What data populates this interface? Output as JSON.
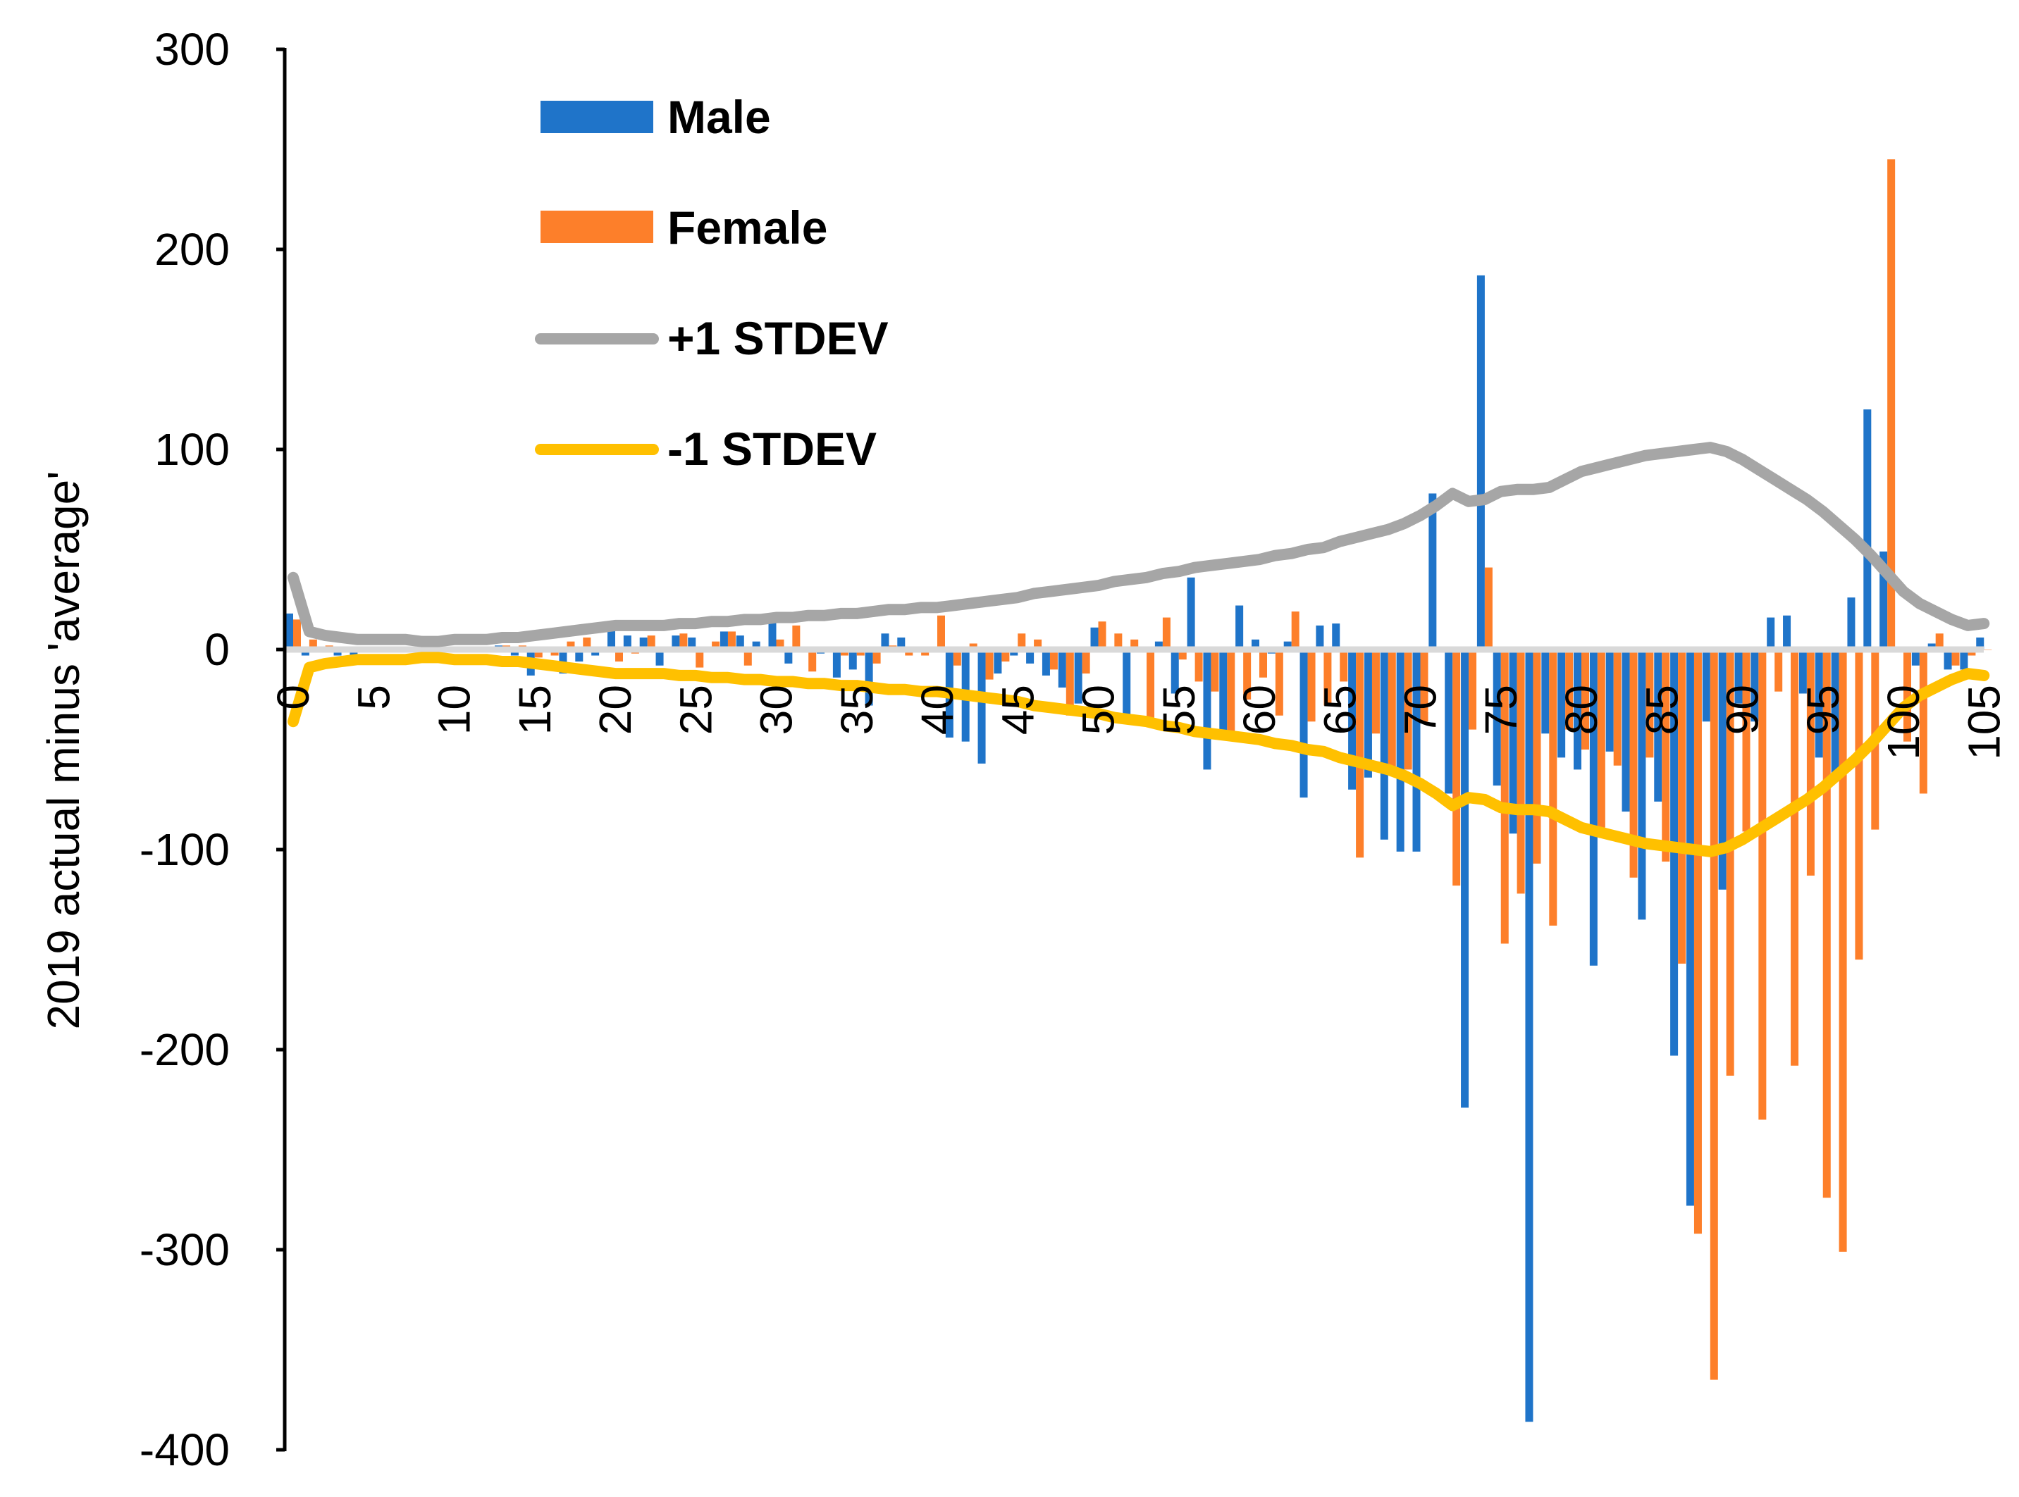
{
  "chart_data": {
    "type": "bar",
    "title": "",
    "xlabel": "",
    "ylabel": "2019 actual minus 'average'",
    "ylim": [
      -400,
      300
    ],
    "yticks": [
      "300",
      "200",
      "100",
      "0",
      "-100",
      "-200",
      "-300",
      "-400"
    ],
    "xticks": [
      "0",
      "5",
      "10",
      "15",
      "20",
      "25",
      "30",
      "35",
      "40",
      "45",
      "50",
      "55",
      "60",
      "65",
      "70",
      "75",
      "80",
      "85",
      "90",
      "95",
      "100",
      "105"
    ],
    "grid": false,
    "legend_position": "top-left",
    "x": [
      0,
      1,
      2,
      3,
      4,
      5,
      6,
      7,
      8,
      9,
      10,
      11,
      12,
      13,
      14,
      15,
      16,
      17,
      18,
      19,
      20,
      21,
      22,
      23,
      24,
      25,
      26,
      27,
      28,
      29,
      30,
      31,
      32,
      33,
      34,
      35,
      36,
      37,
      38,
      39,
      40,
      41,
      42,
      43,
      44,
      45,
      46,
      47,
      48,
      49,
      50,
      51,
      52,
      53,
      54,
      55,
      56,
      57,
      58,
      59,
      60,
      61,
      62,
      63,
      64,
      65,
      66,
      67,
      68,
      69,
      70,
      71,
      72,
      73,
      74,
      75,
      76,
      77,
      78,
      79,
      80,
      81,
      82,
      83,
      84,
      85,
      86,
      87,
      88,
      89,
      90,
      91,
      92,
      93,
      94,
      95,
      96,
      97,
      98,
      99,
      100,
      101,
      102,
      103,
      104,
      105
    ],
    "series": [
      {
        "name": "Male",
        "type": "bar",
        "color": "#1F74C9",
        "values": [
          18,
          -3,
          1,
          -3,
          -3,
          1,
          1,
          -1,
          -1,
          0,
          0,
          1,
          1,
          2,
          -3,
          -13,
          1,
          -12,
          -6,
          -3,
          14,
          7,
          6,
          -8,
          7,
          6,
          -1,
          9,
          7,
          4,
          18,
          -7,
          0,
          -2,
          -14,
          -10,
          -28,
          8,
          6,
          1,
          -1,
          -44,
          -46,
          -57,
          -12,
          -3,
          -7,
          -13,
          -19,
          -27,
          11,
          0,
          -33,
          0,
          4,
          -22,
          36,
          -60,
          -41,
          22,
          5,
          -2,
          4,
          -74,
          12,
          13,
          -70,
          -64,
          -95,
          -101,
          -101,
          78,
          -72,
          -229,
          187,
          -68,
          -92,
          -386,
          -42,
          -54,
          -60,
          -158,
          -51,
          -81,
          -135,
          -76,
          -203,
          -278,
          -36,
          -120,
          -27,
          -36,
          16,
          17,
          -22,
          -54,
          -63,
          26,
          120,
          49,
          0,
          -8,
          3,
          -10,
          -10,
          6
        ]
      },
      {
        "name": "Female",
        "type": "bar",
        "color": "#FD7F2A",
        "values": [
          15,
          5,
          2,
          0,
          1,
          1,
          1,
          1,
          -1,
          0,
          -1,
          1,
          -1,
          2,
          2,
          -4,
          -3,
          4,
          6,
          -1,
          -6,
          -2,
          7,
          1,
          8,
          -9,
          4,
          9,
          -8,
          -1,
          5,
          12,
          -11,
          0,
          -3,
          -3,
          -7,
          2,
          -3,
          -3,
          17,
          -8,
          3,
          -15,
          -6,
          8,
          5,
          -10,
          -33,
          -12,
          14,
          8,
          5,
          -34,
          16,
          -5,
          -16,
          -21,
          -41,
          -25,
          -14,
          -33,
          19,
          -36,
          -28,
          -16,
          -104,
          -42,
          -59,
          -60,
          -36,
          1,
          -118,
          -40,
          41,
          -147,
          -122,
          -107,
          -138,
          -40,
          -50,
          -89,
          -58,
          -114,
          -54,
          -106,
          -157,
          -292,
          -365,
          -213,
          -91,
          -235,
          -21,
          -208,
          -113,
          -274,
          -301,
          -155,
          -90,
          245,
          -46,
          -72,
          8,
          -8,
          -3,
          0
        ]
      },
      {
        "name": "+1 STDEV",
        "type": "line",
        "color": "#A6A6A6",
        "values": [
          36,
          9,
          7,
          6,
          5,
          5,
          5,
          5,
          4,
          4,
          5,
          5,
          5,
          6,
          6,
          7,
          8,
          9,
          10,
          11,
          12,
          12,
          12,
          12,
          13,
          13,
          14,
          14,
          15,
          15,
          16,
          16,
          17,
          17,
          18,
          18,
          19,
          20,
          20,
          21,
          21,
          22,
          23,
          24,
          25,
          26,
          28,
          29,
          30,
          31,
          32,
          34,
          35,
          36,
          38,
          39,
          41,
          42,
          43,
          44,
          45,
          47,
          48,
          50,
          51,
          54,
          56,
          58,
          60,
          63,
          67,
          72,
          78,
          74,
          75,
          79,
          80,
          80,
          81,
          85,
          89,
          91,
          93,
          95,
          97,
          98,
          99,
          100,
          101,
          99,
          95,
          90,
          85,
          80,
          75,
          69,
          62,
          55,
          47,
          38,
          29,
          23,
          19,
          15,
          12,
          13
        ]
      },
      {
        "name": "-1 STDEV",
        "type": "line",
        "color": "#FFC000",
        "values": [
          -36,
          -9,
          -7,
          -6,
          -5,
          -5,
          -5,
          -5,
          -4,
          -4,
          -5,
          -5,
          -5,
          -6,
          -6,
          -7,
          -8,
          -9,
          -10,
          -11,
          -12,
          -12,
          -12,
          -12,
          -13,
          -13,
          -14,
          -14,
          -15,
          -15,
          -16,
          -16,
          -17,
          -17,
          -18,
          -18,
          -19,
          -20,
          -20,
          -21,
          -21,
          -22,
          -23,
          -24,
          -25,
          -26,
          -28,
          -29,
          -30,
          -31,
          -32,
          -34,
          -35,
          -36,
          -38,
          -39,
          -41,
          -42,
          -43,
          -44,
          -45,
          -47,
          -48,
          -50,
          -51,
          -54,
          -56,
          -58,
          -60,
          -63,
          -67,
          -72,
          -78,
          -74,
          -75,
          -79,
          -80,
          -80,
          -81,
          -85,
          -89,
          -91,
          -93,
          -95,
          -97,
          -98,
          -99,
          -100,
          -101,
          -99,
          -95,
          -90,
          -85,
          -80,
          -75,
          -69,
          -62,
          -55,
          -47,
          -38,
          -29,
          -23,
          -19,
          -15,
          -12,
          -13
        ]
      }
    ]
  },
  "legend": {
    "items": [
      "Male",
      "Female",
      "+1 STDEV",
      "-1 STDEV"
    ]
  }
}
